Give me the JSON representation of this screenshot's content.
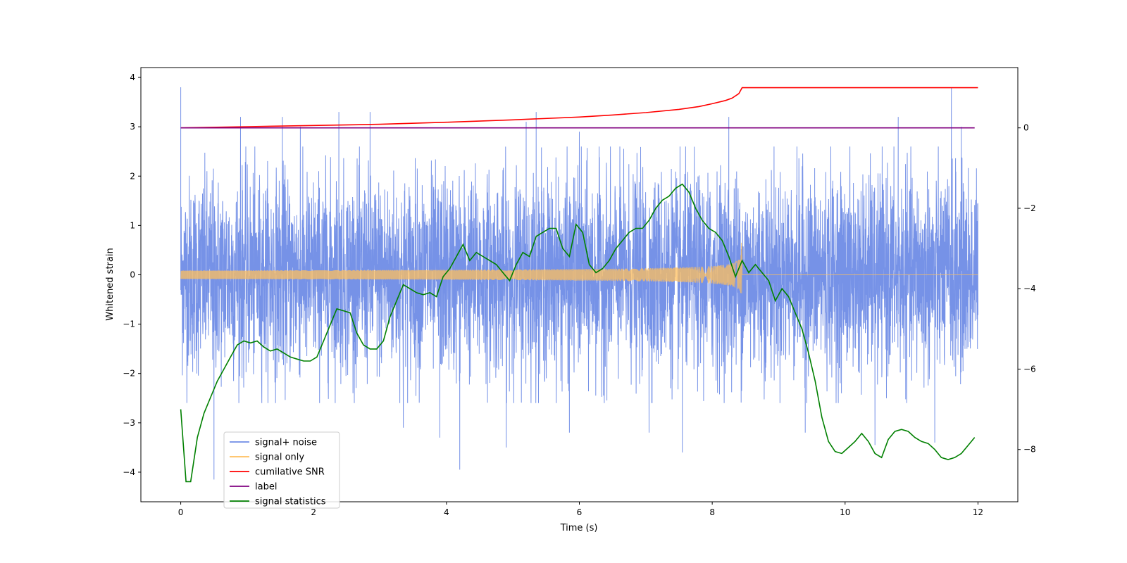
{
  "chart_data": {
    "type": "line",
    "title": "",
    "xlabel": "Time (s)",
    "ylabel": "Whitened strain",
    "y2label": "",
    "xlim": [
      -0.6,
      12.6
    ],
    "ylim": [
      -4.6,
      4.2
    ],
    "y2lim": [
      -9.3,
      1.5
    ],
    "xticks": [
      0,
      2,
      4,
      6,
      8,
      10,
      12
    ],
    "yticks": [
      4,
      3,
      2,
      1,
      0,
      -1,
      -2,
      -3,
      -4
    ],
    "y2ticks": [
      0,
      -2,
      -4,
      -6,
      -8
    ],
    "xtick_labels": [
      "0",
      "2",
      "4",
      "6",
      "8",
      "10",
      "12"
    ],
    "ytick_labels": [
      "4",
      "3",
      "2",
      "1",
      "0",
      "−1",
      "−2",
      "−3",
      "−4"
    ],
    "y2tick_labels": [
      "0",
      "−2",
      "−4",
      "−6",
      "−8"
    ],
    "grid": false,
    "legend_position": "lower-left",
    "series": [
      {
        "name": "signal+ noise",
        "color": "#6f8ce6",
        "axis": "left",
        "kind": "noise",
        "x_range": [
          0,
          12
        ],
        "typical_band": [
          -1.8,
          1.8
        ],
        "spikes": [
          {
            "x": 0.0,
            "y": 3.8
          },
          {
            "x": 0.5,
            "y": -4.15
          },
          {
            "x": 1.53,
            "y": 3.2
          },
          {
            "x": 2.38,
            "y": 3.3
          },
          {
            "x": 2.85,
            "y": 3.3
          },
          {
            "x": 4.2,
            "y": -3.95
          },
          {
            "x": 3.35,
            "y": -3.1
          },
          {
            "x": 5.35,
            "y": 3.3
          },
          {
            "x": 5.2,
            "y": 3.1
          },
          {
            "x": 7.05,
            "y": -3.2
          },
          {
            "x": 7.55,
            "y": -3.6
          },
          {
            "x": 8.25,
            "y": 3.2
          },
          {
            "x": 9.4,
            "y": -3.2
          },
          {
            "x": 10.8,
            "y": 3.2
          },
          {
            "x": 11.6,
            "y": 3.8
          },
          {
            "x": 11.35,
            "y": -3.4
          },
          {
            "x": 10.45,
            "y": -3.45
          },
          {
            "x": 0.9,
            "y": 3.2
          },
          {
            "x": 6.0,
            "y": 2.9
          },
          {
            "x": 1.8,
            "y": 3.0
          },
          {
            "x": 11.75,
            "y": 3.0
          },
          {
            "x": 3.9,
            "y": -3.3
          },
          {
            "x": 4.9,
            "y": -3.5
          },
          {
            "x": 5.85,
            "y": -3.2
          }
        ]
      },
      {
        "name": "signal only",
        "color": "#ffbf5e",
        "axis": "left",
        "kind": "chirp",
        "x_range": [
          0,
          12
        ],
        "merger_time": 8.45,
        "peak_amplitude": 0.65
      },
      {
        "name": "cumilative SNR",
        "color": "#ff0000",
        "axis": "right",
        "x": [
          0,
          1,
          2,
          3,
          4,
          5,
          6,
          6.5,
          7,
          7.5,
          7.8,
          8.0,
          8.2,
          8.3,
          8.4,
          8.45,
          12
        ],
        "y": [
          0,
          0.03,
          0.06,
          0.09,
          0.14,
          0.2,
          0.27,
          0.32,
          0.38,
          0.46,
          0.53,
          0.6,
          0.68,
          0.74,
          0.85,
          1.0,
          1.0
        ]
      },
      {
        "name": "label",
        "color": "#800080",
        "axis": "right",
        "x": [
          0,
          11.95
        ],
        "y": [
          0,
          0
        ]
      },
      {
        "name": "signal statistics",
        "color": "#008000",
        "axis": "right",
        "x": [
          0,
          0.08,
          0.15,
          0.25,
          0.35,
          0.45,
          0.55,
          0.65,
          0.75,
          0.85,
          0.95,
          1.05,
          1.15,
          1.25,
          1.35,
          1.45,
          1.55,
          1.65,
          1.75,
          1.85,
          1.95,
          2.05,
          2.15,
          2.25,
          2.35,
          2.45,
          2.55,
          2.65,
          2.75,
          2.85,
          2.95,
          3.05,
          3.15,
          3.25,
          3.35,
          3.45,
          3.55,
          3.65,
          3.75,
          3.85,
          3.95,
          4.05,
          4.15,
          4.25,
          4.35,
          4.45,
          4.55,
          4.65,
          4.75,
          4.85,
          4.95,
          5.05,
          5.15,
          5.25,
          5.35,
          5.45,
          5.55,
          5.65,
          5.75,
          5.85,
          5.95,
          6.05,
          6.15,
          6.25,
          6.35,
          6.45,
          6.55,
          6.65,
          6.75,
          6.85,
          6.95,
          7.05,
          7.15,
          7.25,
          7.35,
          7.45,
          7.55,
          7.65,
          7.75,
          7.85,
          7.95,
          8.05,
          8.15,
          8.25,
          8.35,
          8.45,
          8.55,
          8.65,
          8.75,
          8.85,
          8.95,
          9.05,
          9.15,
          9.25,
          9.35,
          9.45,
          9.55,
          9.65,
          9.75,
          9.85,
          9.95,
          10.05,
          10.15,
          10.25,
          10.35,
          10.45,
          10.55,
          10.65,
          10.75,
          10.85,
          10.95,
          11.05,
          11.15,
          11.25,
          11.35,
          11.45,
          11.55,
          11.65,
          11.75,
          11.85,
          11.95
        ],
        "y": [
          -7.0,
          -8.8,
          -8.8,
          -7.7,
          -7.1,
          -6.7,
          -6.3,
          -6.0,
          -5.7,
          -5.4,
          -5.3,
          -5.35,
          -5.3,
          -5.45,
          -5.55,
          -5.5,
          -5.6,
          -5.7,
          -5.75,
          -5.8,
          -5.8,
          -5.7,
          -5.3,
          -4.9,
          -4.5,
          -4.55,
          -4.6,
          -5.1,
          -5.4,
          -5.5,
          -5.5,
          -5.3,
          -4.7,
          -4.3,
          -3.9,
          -4.0,
          -4.1,
          -4.15,
          -4.1,
          -4.2,
          -3.7,
          -3.5,
          -3.2,
          -2.9,
          -3.3,
          -3.1,
          -3.2,
          -3.3,
          -3.4,
          -3.6,
          -3.8,
          -3.4,
          -3.1,
          -3.2,
          -2.7,
          -2.6,
          -2.5,
          -2.5,
          -3.0,
          -3.2,
          -2.4,
          -2.6,
          -3.4,
          -3.6,
          -3.5,
          -3.3,
          -3.0,
          -2.8,
          -2.6,
          -2.5,
          -2.5,
          -2.3,
          -2.0,
          -1.8,
          -1.7,
          -1.5,
          -1.4,
          -1.6,
          -2.0,
          -2.3,
          -2.5,
          -2.6,
          -2.8,
          -3.2,
          -3.7,
          -3.3,
          -3.6,
          -3.4,
          -3.6,
          -3.8,
          -4.3,
          -4.0,
          -4.2,
          -4.6,
          -5.0,
          -5.6,
          -6.3,
          -7.2,
          -7.8,
          -8.05,
          -8.1,
          -7.95,
          -7.8,
          -7.6,
          -7.8,
          -8.1,
          -8.2,
          -7.75,
          -7.55,
          -7.5,
          -7.55,
          -7.7,
          -7.8,
          -7.85,
          -8.0,
          -8.2,
          -8.25,
          -8.2,
          -8.1,
          -7.9,
          -7.7
        ]
      }
    ]
  }
}
